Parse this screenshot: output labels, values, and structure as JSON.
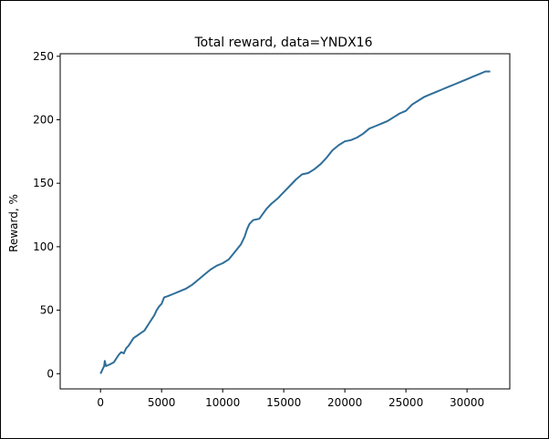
{
  "chart_data": {
    "type": "line",
    "title": "Total reward, data=YNDX16",
    "xlabel": "",
    "ylabel": "Reward, %",
    "xlim": [
      -3300,
      33500
    ],
    "ylim": [
      -12,
      252
    ],
    "xticks": [
      0,
      5000,
      10000,
      15000,
      20000,
      25000,
      30000
    ],
    "xtick_labels": [
      "0",
      "5000",
      "10000",
      "15000",
      "20000",
      "25000",
      "30000"
    ],
    "yticks": [
      0,
      50,
      100,
      150,
      200,
      250
    ],
    "ytick_labels": [
      "0",
      "50",
      "100",
      "150",
      "200",
      "250"
    ],
    "grid": false,
    "line_color": "#2f6e99",
    "series": [
      {
        "x": [
          0,
          150,
          300,
          350,
          450,
          700,
          900,
          1100,
          1300,
          1500,
          1700,
          1900,
          2100,
          2300,
          2500,
          2700,
          3000,
          3300,
          3600,
          3800,
          4000,
          4200,
          4400,
          4600,
          4800,
          5000,
          5200,
          5500,
          6000,
          6500,
          7000,
          7500,
          8000,
          8500,
          9000,
          9500,
          10000,
          10500,
          11000,
          11500,
          11800,
          12000,
          12200,
          12500,
          13000,
          13300,
          13600,
          14000,
          14500,
          14800,
          15000,
          15500,
          16000,
          16500,
          17000,
          17500,
          18000,
          18500,
          19000,
          19500,
          20000,
          20500,
          21000,
          21500,
          22000,
          22500,
          23000,
          23500,
          24000,
          24500,
          25000,
          25500,
          26000,
          26500,
          27000,
          27500,
          28000,
          28500,
          29000,
          29500,
          30000,
          30500,
          31000,
          31500,
          31900
        ],
        "y": [
          0,
          3,
          6,
          10,
          6,
          7,
          8,
          9,
          12,
          15,
          17,
          16,
          20,
          22,
          25,
          28,
          30,
          32,
          34,
          37,
          40,
          43,
          46,
          50,
          53,
          55,
          60,
          61,
          63,
          65,
          67,
          70,
          74,
          78,
          82,
          85,
          87,
          90,
          96,
          102,
          108,
          114,
          118,
          121,
          122,
          126,
          130,
          134,
          138,
          141,
          143,
          148,
          153,
          157,
          158,
          161,
          165,
          170,
          176,
          180,
          183,
          184,
          186,
          189,
          193,
          195,
          197,
          199,
          202,
          205,
          207,
          212,
          215,
          218,
          220,
          222,
          224,
          226,
          228,
          230,
          232,
          234,
          236,
          238,
          238
        ]
      }
    ]
  }
}
